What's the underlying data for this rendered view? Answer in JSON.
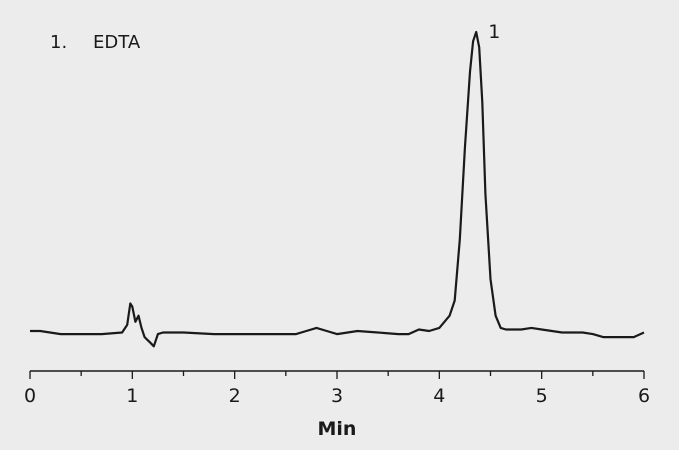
{
  "chart_data": {
    "type": "line",
    "title": "",
    "xlabel": "Min",
    "ylabel": "",
    "xlim": [
      0,
      6
    ],
    "ylim": [
      -0.08,
      1.0
    ],
    "grid": false,
    "x_ticks": [
      "0",
      "1",
      "2",
      "3",
      "4",
      "5",
      "6"
    ],
    "legend": [
      {
        "number": "1.",
        "name": "EDTA"
      }
    ],
    "peaks": [
      {
        "label": "1",
        "x": 4.36,
        "y": 0.98
      }
    ],
    "series": [
      {
        "color": "#1a1a1a",
        "x": [
          0.0,
          0.1,
          0.3,
          0.5,
          0.7,
          0.9,
          0.95,
          0.98,
          1.0,
          1.03,
          1.06,
          1.09,
          1.12,
          1.15,
          1.18,
          1.21,
          1.25,
          1.3,
          1.5,
          1.8,
          2.0,
          2.3,
          2.6,
          2.7,
          2.8,
          2.9,
          3.0,
          3.2,
          3.4,
          3.6,
          3.7,
          3.8,
          3.9,
          4.0,
          4.1,
          4.15,
          4.2,
          4.25,
          4.3,
          4.33,
          4.36,
          4.39,
          4.42,
          4.45,
          4.5,
          4.55,
          4.6,
          4.65,
          4.7,
          4.8,
          4.9,
          5.0,
          5.2,
          5.4,
          5.5,
          5.6,
          5.7,
          5.8,
          5.9,
          6.0
        ],
        "y": [
          0.0,
          0.0,
          -0.01,
          -0.01,
          -0.01,
          -0.005,
          0.02,
          0.09,
          0.08,
          0.03,
          0.05,
          0.01,
          -0.02,
          -0.03,
          -0.04,
          -0.05,
          -0.01,
          -0.005,
          -0.005,
          -0.01,
          -0.01,
          -0.01,
          -0.01,
          0.0,
          0.01,
          0.0,
          -0.01,
          0.0,
          -0.005,
          -0.01,
          -0.01,
          0.005,
          0.0,
          0.01,
          0.05,
          0.1,
          0.3,
          0.6,
          0.85,
          0.95,
          0.98,
          0.93,
          0.75,
          0.45,
          0.17,
          0.05,
          0.01,
          0.005,
          0.005,
          0.005,
          0.01,
          0.005,
          -0.005,
          -0.005,
          -0.01,
          -0.02,
          -0.02,
          -0.02,
          -0.02,
          -0.005
        ]
      }
    ]
  }
}
